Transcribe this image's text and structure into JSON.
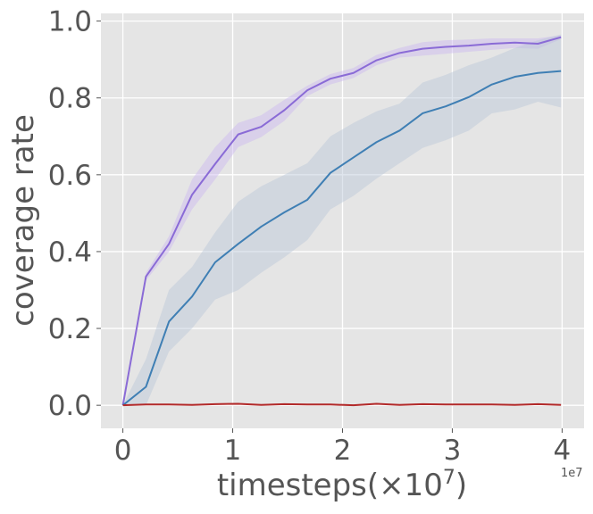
{
  "chart_data": {
    "type": "line",
    "xlabel": "timesteps(×10",
    "xlabel_sup": "7",
    "xlabel_close": ")",
    "ylabel": "coverage rate",
    "x_offset_text": "1e7",
    "xlim": [
      -0.2,
      4.2
    ],
    "ylim": [
      -0.06,
      1.02
    ],
    "xticks": [
      0,
      1,
      2,
      3,
      4
    ],
    "xtick_labels": [
      "0",
      "1",
      "2",
      "3",
      "4"
    ],
    "yticks": [
      0.0,
      0.2,
      0.4,
      0.6,
      0.8,
      1.0
    ],
    "ytick_labels": [
      "0.0",
      "0.2",
      "0.4",
      "0.6",
      "0.8",
      "1.0"
    ],
    "grid": true,
    "background": "#e5e5e5",
    "x": [
      0,
      0.21,
      0.42,
      0.63,
      0.84,
      1.05,
      1.26,
      1.47,
      1.68,
      1.89,
      2.1,
      2.31,
      2.52,
      2.73,
      2.94,
      3.15,
      3.36,
      3.57,
      3.78,
      3.99
    ],
    "series": [
      {
        "color": "#8a6bd6",
        "band_color": "#c9b6ef",
        "values": [
          0.0,
          0.335,
          0.42,
          0.548,
          0.628,
          0.705,
          0.725,
          0.768,
          0.82,
          0.85,
          0.865,
          0.898,
          0.917,
          0.928,
          0.933,
          0.936,
          0.941,
          0.944,
          0.941,
          0.958
        ],
        "upper": [
          0.0,
          0.345,
          0.44,
          0.588,
          0.672,
          0.735,
          0.755,
          0.795,
          0.832,
          0.862,
          0.878,
          0.912,
          0.93,
          0.945,
          0.95,
          0.952,
          0.955,
          0.955,
          0.955,
          0.963
        ],
        "lower": [
          0.0,
          0.325,
          0.4,
          0.51,
          0.588,
          0.672,
          0.698,
          0.74,
          0.805,
          0.835,
          0.852,
          0.885,
          0.905,
          0.91,
          0.915,
          0.92,
          0.925,
          0.93,
          0.928,
          0.953
        ]
      },
      {
        "color": "#3f7fb4",
        "band_color": "#b9c6d8",
        "values": [
          0.0,
          0.048,
          0.218,
          0.283,
          0.372,
          0.42,
          0.465,
          0.502,
          0.535,
          0.605,
          0.645,
          0.685,
          0.715,
          0.76,
          0.778,
          0.802,
          0.835,
          0.855,
          0.865,
          0.87
        ],
        "upper": [
          0.0,
          0.12,
          0.3,
          0.36,
          0.45,
          0.53,
          0.57,
          0.6,
          0.63,
          0.7,
          0.735,
          0.765,
          0.785,
          0.84,
          0.86,
          0.885,
          0.905,
          0.93,
          0.95,
          0.965
        ],
        "lower": [
          0.0,
          0.0,
          0.14,
          0.2,
          0.275,
          0.3,
          0.345,
          0.385,
          0.43,
          0.51,
          0.545,
          0.59,
          0.63,
          0.67,
          0.69,
          0.715,
          0.76,
          0.77,
          0.79,
          0.775
        ]
      },
      {
        "color": "#b22a2a",
        "band_color": "#e3b3b3",
        "values": [
          0.0,
          0.002,
          0.002,
          0.001,
          0.003,
          0.004,
          0.001,
          0.003,
          0.002,
          0.002,
          0.0,
          0.004,
          0.001,
          0.003,
          0.002,
          0.002,
          0.002,
          0.001,
          0.003,
          0.001
        ],
        "upper": [
          0.0,
          0.004,
          0.004,
          0.003,
          0.005,
          0.006,
          0.003,
          0.005,
          0.004,
          0.004,
          0.002,
          0.006,
          0.003,
          0.005,
          0.004,
          0.004,
          0.004,
          0.003,
          0.005,
          0.003
        ],
        "lower": [
          0.0,
          0.0,
          0.0,
          0.0,
          0.001,
          0.002,
          0.0,
          0.001,
          0.0,
          0.0,
          0.0,
          0.002,
          0.0,
          0.001,
          0.0,
          0.0,
          0.0,
          0.0,
          0.001,
          0.0
        ]
      }
    ]
  }
}
